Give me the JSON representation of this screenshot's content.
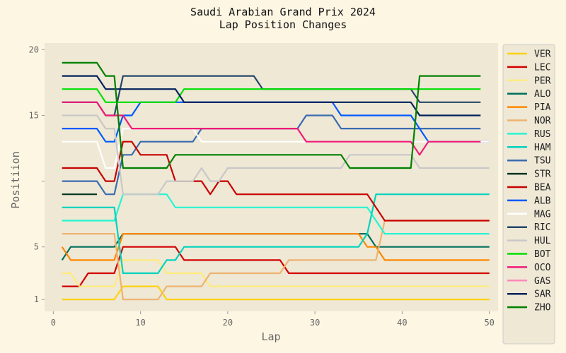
{
  "chart_data": {
    "type": "line",
    "title": "Saudi Arabian Grand Prix 2024",
    "subtitle": "Lap Position Changes",
    "xlabel": "Lap",
    "ylabel": "Positiion",
    "xlim": [
      -1,
      51
    ],
    "ylim": [
      20.5,
      0.1
    ],
    "y_inverted": true,
    "xticks": [
      0,
      10,
      20,
      30,
      40,
      50
    ],
    "yticks": [
      1,
      5,
      10,
      15,
      20
    ],
    "ytick_labels": [
      "1",
      "5",
      "",
      "15",
      "20"
    ],
    "grid": false,
    "legend": "right",
    "series": [
      {
        "name": "VER",
        "color": "#ffd20e",
        "points": [
          [
            1,
            1
          ],
          [
            7,
            1
          ],
          [
            8,
            2
          ],
          [
            12,
            2
          ],
          [
            13,
            1
          ],
          [
            50,
            1
          ]
        ]
      },
      {
        "name": "LEC",
        "color": "#d40000",
        "points": [
          [
            1,
            2
          ],
          [
            3,
            2
          ],
          [
            4,
            3
          ],
          [
            7,
            3
          ],
          [
            8,
            5
          ],
          [
            14,
            5
          ],
          [
            15,
            4
          ],
          [
            26,
            4
          ],
          [
            27,
            3
          ],
          [
            50,
            3
          ]
        ]
      },
      {
        "name": "PER",
        "color": "#ffeb7d",
        "points": [
          [
            1,
            3
          ],
          [
            2,
            3
          ],
          [
            3,
            2
          ],
          [
            7,
            2
          ],
          [
            8,
            4
          ],
          [
            12,
            4
          ],
          [
            13,
            3
          ],
          [
            17,
            3
          ],
          [
            18,
            2
          ],
          [
            50,
            2
          ]
        ]
      },
      {
        "name": "ALO",
        "color": "#006f5c",
        "points": [
          [
            1,
            4
          ],
          [
            2,
            5
          ],
          [
            7,
            5
          ],
          [
            8,
            6
          ],
          [
            36,
            6
          ],
          [
            37,
            5
          ],
          [
            50,
            5
          ]
        ]
      },
      {
        "name": "PIA",
        "color": "#ff8700",
        "points": [
          [
            1,
            5
          ],
          [
            2,
            4
          ],
          [
            7,
            4
          ],
          [
            8,
            6
          ],
          [
            35,
            6
          ],
          [
            36,
            5
          ],
          [
            37,
            5
          ],
          [
            38,
            4
          ],
          [
            50,
            4
          ]
        ]
      },
      {
        "name": "NOR",
        "color": "#eeb370",
        "points": [
          [
            1,
            6
          ],
          [
            7,
            6
          ],
          [
            8,
            1
          ],
          [
            12,
            1
          ],
          [
            13,
            2
          ],
          [
            17,
            2
          ],
          [
            18,
            3
          ],
          [
            26,
            3
          ],
          [
            27,
            4
          ],
          [
            37,
            4
          ],
          [
            38,
            7
          ],
          [
            50,
            7
          ]
        ]
      },
      {
        "name": "RUS",
        "color": "#27f4d2",
        "points": [
          [
            1,
            7
          ],
          [
            7,
            7
          ],
          [
            8,
            9
          ],
          [
            13,
            9
          ],
          [
            14,
            8
          ],
          [
            36,
            8
          ],
          [
            37,
            7
          ],
          [
            38,
            6
          ],
          [
            50,
            6
          ]
        ]
      },
      {
        "name": "HAM",
        "color": "#00d2be",
        "points": [
          [
            1,
            8
          ],
          [
            7,
            8
          ],
          [
            8,
            3
          ],
          [
            12,
            3
          ],
          [
            13,
            4
          ],
          [
            14,
            4
          ],
          [
            15,
            5
          ],
          [
            35,
            5
          ],
          [
            36,
            6
          ],
          [
            37,
            9
          ],
          [
            50,
            9
          ]
        ]
      },
      {
        "name": "TSU",
        "color": "#3a6bb0",
        "points": [
          [
            1,
            10
          ],
          [
            5,
            10
          ],
          [
            6,
            9
          ],
          [
            7,
            9
          ],
          [
            8,
            12
          ],
          [
            9,
            12
          ],
          [
            10,
            13
          ],
          [
            16,
            13
          ],
          [
            17,
            14
          ],
          [
            28,
            14
          ],
          [
            29,
            15
          ],
          [
            32,
            15
          ],
          [
            33,
            14
          ],
          [
            49,
            14
          ]
        ]
      },
      {
        "name": "STR",
        "color": "#003320",
        "points": [
          [
            1,
            9
          ],
          [
            5,
            9
          ]
        ]
      },
      {
        "name": "BEA",
        "color": "#c80000",
        "points": [
          [
            1,
            11
          ],
          [
            5,
            11
          ],
          [
            6,
            10
          ],
          [
            7,
            10
          ],
          [
            8,
            13
          ],
          [
            9,
            13
          ],
          [
            10,
            12
          ],
          [
            13,
            12
          ],
          [
            14,
            10
          ],
          [
            17,
            10
          ],
          [
            18,
            9
          ],
          [
            19,
            10
          ],
          [
            20,
            10
          ],
          [
            21,
            9
          ],
          [
            36,
            9
          ],
          [
            37,
            8
          ],
          [
            38,
            7
          ],
          [
            50,
            7
          ]
        ]
      },
      {
        "name": "ALB",
        "color": "#005aff",
        "points": [
          [
            1,
            14
          ],
          [
            5,
            14
          ],
          [
            6,
            13
          ],
          [
            7,
            13
          ],
          [
            8,
            15
          ],
          [
            9,
            15
          ],
          [
            10,
            16
          ],
          [
            32,
            16
          ],
          [
            33,
            15
          ],
          [
            41,
            15
          ],
          [
            42,
            14
          ],
          [
            43,
            13
          ],
          [
            50,
            13
          ]
        ]
      },
      {
        "name": "MAG",
        "color": "#ffffff",
        "points": [
          [
            1,
            13
          ],
          [
            5,
            13
          ],
          [
            6,
            11
          ],
          [
            7,
            11
          ],
          [
            8,
            14
          ],
          [
            16,
            14
          ],
          [
            17,
            13
          ],
          [
            50,
            13
          ]
        ]
      },
      {
        "name": "RIC",
        "color": "#25476a",
        "points": [
          [
            1,
            16
          ],
          [
            5,
            16
          ],
          [
            6,
            15
          ],
          [
            7,
            15
          ],
          [
            8,
            18
          ],
          [
            23,
            18
          ],
          [
            24,
            17
          ],
          [
            41,
            17
          ],
          [
            42,
            16
          ],
          [
            49,
            16
          ]
        ]
      },
      {
        "name": "HUL",
        "color": "#c8c8c8",
        "points": [
          [
            1,
            15
          ],
          [
            5,
            15
          ],
          [
            6,
            14
          ],
          [
            7,
            14
          ],
          [
            8,
            9
          ],
          [
            12,
            9
          ],
          [
            13,
            10
          ],
          [
            16,
            10
          ],
          [
            17,
            11
          ],
          [
            18,
            10
          ],
          [
            19,
            10
          ],
          [
            20,
            11
          ],
          [
            33,
            11
          ],
          [
            34,
            12
          ],
          [
            41,
            12
          ],
          [
            42,
            11
          ],
          [
            50,
            11
          ]
        ]
      },
      {
        "name": "BOT",
        "color": "#00e000",
        "points": [
          [
            1,
            17
          ],
          [
            5,
            17
          ],
          [
            6,
            16
          ],
          [
            14,
            16
          ],
          [
            15,
            17
          ],
          [
            49,
            17
          ]
        ]
      },
      {
        "name": "OCO",
        "color": "#f01a78",
        "points": [
          [
            1,
            16
          ],
          [
            5,
            16
          ],
          [
            6,
            15
          ],
          [
            7,
            15
          ],
          [
            8,
            15
          ],
          [
            9,
            14
          ],
          [
            28,
            14
          ],
          [
            29,
            13
          ],
          [
            41,
            13
          ],
          [
            42,
            12
          ],
          [
            43,
            13
          ],
          [
            49,
            13
          ]
        ]
      },
      {
        "name": "GAS",
        "color": "#ff87bc",
        "points": []
      },
      {
        "name": "SAR",
        "color": "#00205b",
        "points": [
          [
            1,
            18
          ],
          [
            5,
            18
          ],
          [
            6,
            17
          ],
          [
            14,
            17
          ],
          [
            15,
            16
          ],
          [
            41,
            16
          ],
          [
            42,
            15
          ],
          [
            49,
            15
          ]
        ]
      },
      {
        "name": "ZHO",
        "color": "#008000",
        "points": [
          [
            1,
            19
          ],
          [
            5,
            19
          ],
          [
            6,
            18
          ],
          [
            7,
            18
          ],
          [
            8,
            11
          ],
          [
            13,
            11
          ],
          [
            14,
            12
          ],
          [
            33,
            12
          ],
          [
            34,
            11
          ],
          [
            41,
            11
          ],
          [
            42,
            18
          ],
          [
            49,
            18
          ]
        ]
      }
    ]
  }
}
